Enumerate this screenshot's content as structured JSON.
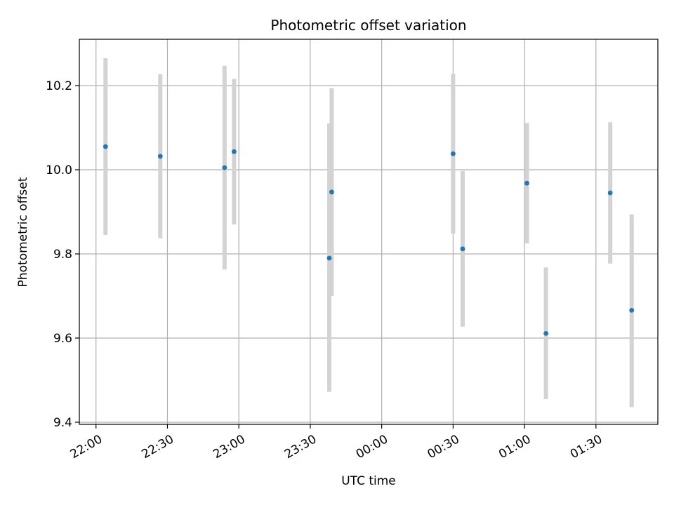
{
  "chart_data": {
    "type": "scatter",
    "title": "Photometric offset variation",
    "xlabel": "UTC time",
    "ylabel": "Photometric offset",
    "x_ticks": [
      "22:00",
      "22:30",
      "23:00",
      "23:30",
      "00:00",
      "00:30",
      "01:00",
      "01:30"
    ],
    "xlim": [
      "21:53",
      "01:56"
    ],
    "y_ticks": [
      "9.4",
      "9.6",
      "9.8",
      "10.0",
      "10.2"
    ],
    "ylim": [
      9.395,
      10.31
    ],
    "grid": true,
    "legend": "none",
    "point_color": "#1f77b4",
    "errorbar_color": "#d3d3d3",
    "points": [
      {
        "x": "22:04",
        "y": 10.055,
        "yerr_low": 9.845,
        "yerr_high": 10.265
      },
      {
        "x": "22:27",
        "y": 10.032,
        "yerr_low": 9.837,
        "yerr_high": 10.227
      },
      {
        "x": "22:54",
        "y": 10.005,
        "yerr_low": 9.763,
        "yerr_high": 10.247
      },
      {
        "x": "22:58",
        "y": 10.043,
        "yerr_low": 9.87,
        "yerr_high": 10.216
      },
      {
        "x": "23:38",
        "y": 9.79,
        "yerr_low": 9.472,
        "yerr_high": 10.11
      },
      {
        "x": "23:39",
        "y": 9.947,
        "yerr_low": 9.7,
        "yerr_high": 10.194
      },
      {
        "x": "00:30",
        "y": 10.038,
        "yerr_low": 9.848,
        "yerr_high": 10.228
      },
      {
        "x": "00:34",
        "y": 9.812,
        "yerr_low": 9.627,
        "yerr_high": 9.997
      },
      {
        "x": "01:01",
        "y": 9.968,
        "yerr_low": 9.825,
        "yerr_high": 10.111
      },
      {
        "x": "01:09",
        "y": 9.611,
        "yerr_low": 9.455,
        "yerr_high": 9.768
      },
      {
        "x": "01:36",
        "y": 9.945,
        "yerr_low": 9.777,
        "yerr_high": 10.113
      },
      {
        "x": "01:45",
        "y": 9.666,
        "yerr_low": 9.436,
        "yerr_high": 9.894
      }
    ]
  }
}
